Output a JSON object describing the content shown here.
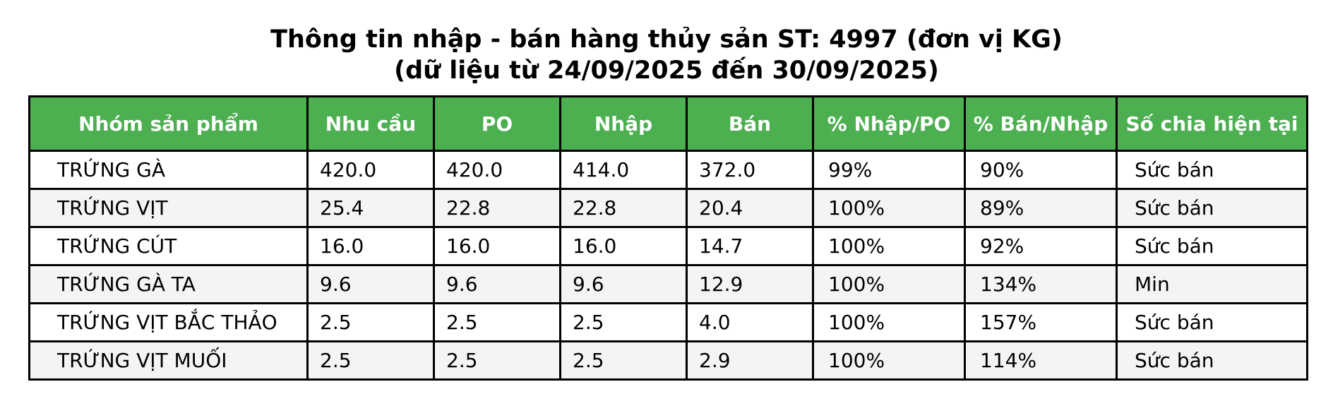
{
  "title": {
    "line1": "Thông tin nhập - bán hàng thủy sản ST: 4997 (đơn vị KG)",
    "line2": "(dữ liệu từ 24/09/2025 đến 30/09/2025)"
  },
  "colors": {
    "header_bg": "#4caf50",
    "header_text": "#ffffff",
    "stripe": "#f4f4f4",
    "border": "#000000"
  },
  "chart_data": {
    "type": "table",
    "title": "Thông tin nhập - bán hàng thủy sản ST: 4997 (đơn vị KG)",
    "subtitle": "(dữ liệu từ 24/09/2025 đến 30/09/2025)",
    "columns": [
      "Nhóm sản phẩm",
      "Nhu cầu",
      "PO",
      "Nhập",
      "Bán",
      "% Nhập/PO",
      "% Bán/Nhập",
      "Số chia hiện tại"
    ],
    "rows": [
      [
        "TRỨNG GÀ",
        "420.0",
        "420.0",
        "414.0",
        "372.0",
        "99%",
        "90%",
        "Sức bán"
      ],
      [
        "TRỨNG VỊT",
        "25.4",
        "22.8",
        "22.8",
        "20.4",
        "100%",
        "89%",
        "Sức bán"
      ],
      [
        "TRỨNG CÚT",
        "16.0",
        "16.0",
        "16.0",
        "14.7",
        "100%",
        "92%",
        "Sức bán"
      ],
      [
        "TRỨNG GÀ TA",
        "9.6",
        "9.6",
        "9.6",
        "12.9",
        "100%",
        "134%",
        "Min"
      ],
      [
        "TRỨNG VỊT BẮC THẢO",
        "2.5",
        "2.5",
        "2.5",
        "4.0",
        "100%",
        "157%",
        "Sức bán"
      ],
      [
        "TRỨNG VỊT MUỐI",
        "2.5",
        "2.5",
        "2.5",
        "2.9",
        "100%",
        "114%",
        "Sức bán"
      ]
    ]
  }
}
